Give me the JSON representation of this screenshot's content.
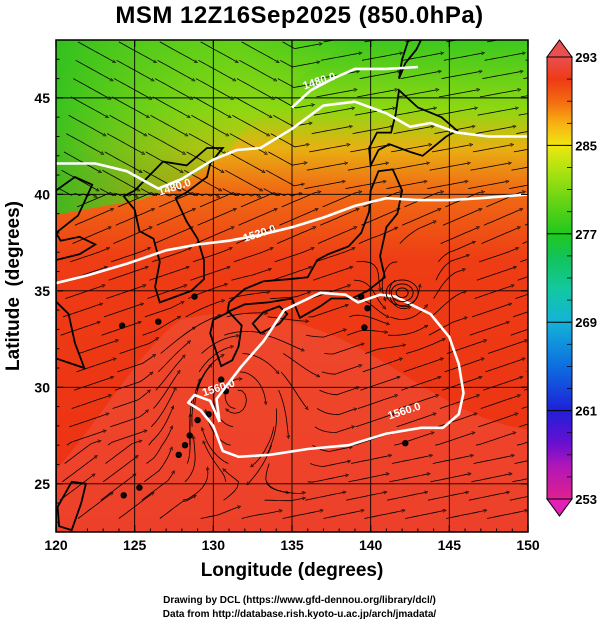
{
  "title": "MSM 12Z16Sep2025 (850.0hPa)",
  "map": {
    "xlabel": "Longitude (degrees)",
    "ylabel": "Latitude  (degrees)",
    "lon_range": [
      120,
      150
    ],
    "lat_range": [
      22.5,
      48
    ],
    "lon_ticks": [
      120,
      125,
      130,
      135,
      140,
      145,
      150
    ],
    "lat_ticks": [
      25,
      30,
      35,
      40,
      45
    ],
    "contours": [
      {
        "label": "1480.0",
        "label_at": [
          127.6,
          40.2
        ],
        "points": [
          [
            120,
            41.6
          ],
          [
            122.5,
            41.6
          ],
          [
            124.5,
            41.2
          ],
          [
            126.5,
            40.3
          ],
          [
            128,
            40.8
          ],
          [
            130,
            41.8
          ],
          [
            131.5,
            42.3
          ],
          [
            133,
            42.4
          ],
          [
            135,
            43.4
          ],
          [
            137,
            44.6
          ],
          [
            139,
            44.8
          ],
          [
            141,
            44.2
          ],
          [
            142.5,
            43.5
          ],
          [
            143.8,
            43.7
          ],
          [
            145.5,
            43.2
          ],
          [
            147.5,
            43.0
          ],
          [
            150,
            43.0
          ]
        ]
      },
      {
        "label": "1480.0",
        "label_at": [
          136.8,
          45.7
        ],
        "points": [
          [
            135,
            44.5
          ],
          [
            136.2,
            45.4
          ],
          [
            137.6,
            46.0
          ],
          [
            139,
            46.5
          ],
          [
            141,
            46.5
          ],
          [
            143,
            46.6
          ]
        ]
      },
      {
        "label": "1520.0",
        "label_at": [
          133.0,
          37.8
        ],
        "points": [
          [
            120,
            35.4
          ],
          [
            122,
            35.8
          ],
          [
            124.5,
            36.4
          ],
          [
            127,
            37.1
          ],
          [
            129,
            37.4
          ],
          [
            131,
            37.6
          ],
          [
            133,
            37.9
          ],
          [
            135,
            38.3
          ],
          [
            137,
            38.8
          ],
          [
            139,
            39.4
          ],
          [
            141,
            39.8
          ],
          [
            143,
            39.7
          ],
          [
            145,
            39.7
          ],
          [
            147,
            39.8
          ],
          [
            150,
            40.0
          ]
        ]
      },
      {
        "label": "1560.0",
        "label_at": [
          130.4,
          29.8
        ],
        "points": [
          [
            130.4,
            28.2
          ],
          [
            130.2,
            29.4
          ],
          [
            131.8,
            31.1
          ],
          [
            133.2,
            32.4
          ],
          [
            134.5,
            34.0
          ],
          [
            136.8,
            34.9
          ],
          [
            138.4,
            34.8
          ],
          [
            139.2,
            34.4
          ],
          [
            140.6,
            34.8
          ],
          [
            141.6,
            34.7
          ],
          [
            142.8,
            34.2
          ],
          [
            143.8,
            33.8
          ],
          [
            145.0,
            32.6
          ],
          [
            145.6,
            31.2
          ],
          [
            145.9,
            29.7
          ],
          [
            145.6,
            28.6
          ],
          [
            144.6,
            27.9
          ],
          [
            143.2,
            27.9
          ],
          [
            141.0,
            27.6
          ],
          [
            138.6,
            27.0
          ],
          [
            136.0,
            26.8
          ],
          [
            133.6,
            26.5
          ],
          [
            131.6,
            26.4
          ],
          [
            130.6,
            26.7
          ],
          [
            130.0,
            28.0
          ],
          [
            129.2,
            28.8
          ],
          [
            128.4,
            29.2
          ],
          [
            128.8,
            29.6
          ],
          [
            129.8,
            29.3
          ],
          [
            130.4,
            28.2
          ]
        ]
      },
      {
        "label": "1560.0",
        "label_at": [
          142.2,
          28.6
        ],
        "points": []
      }
    ],
    "low_center": [
      142.0,
      34.9
    ]
  },
  "colorbar": {
    "ticks": [
      293,
      285,
      277,
      269,
      261,
      253
    ],
    "min": 253,
    "max": 293,
    "stops": [
      {
        "v": 253,
        "c": "#e0208f"
      },
      {
        "v": 256,
        "c": "#b016b8"
      },
      {
        "v": 258,
        "c": "#6a0fd0"
      },
      {
        "v": 261,
        "c": "#1f1fd8"
      },
      {
        "v": 265,
        "c": "#0d6ee0"
      },
      {
        "v": 269,
        "c": "#14b2d8"
      },
      {
        "v": 272,
        "c": "#12c8a0"
      },
      {
        "v": 275,
        "c": "#12c456"
      },
      {
        "v": 277,
        "c": "#20c81e"
      },
      {
        "v": 280,
        "c": "#68d414"
      },
      {
        "v": 283,
        "c": "#b4e410"
      },
      {
        "v": 285,
        "c": "#f0e610"
      },
      {
        "v": 287,
        "c": "#f8b012"
      },
      {
        "v": 289,
        "c": "#f46a12"
      },
      {
        "v": 291,
        "c": "#ee3a14"
      },
      {
        "v": 293,
        "c": "#ea5050"
      }
    ]
  },
  "credits": {
    "line1": "Drawing by DCL (https://www.gfd-dennou.org/library/dcl/)",
    "line2": "Data from http://database.rish.kyoto-u.ac.jp/arch/jmadata/"
  }
}
